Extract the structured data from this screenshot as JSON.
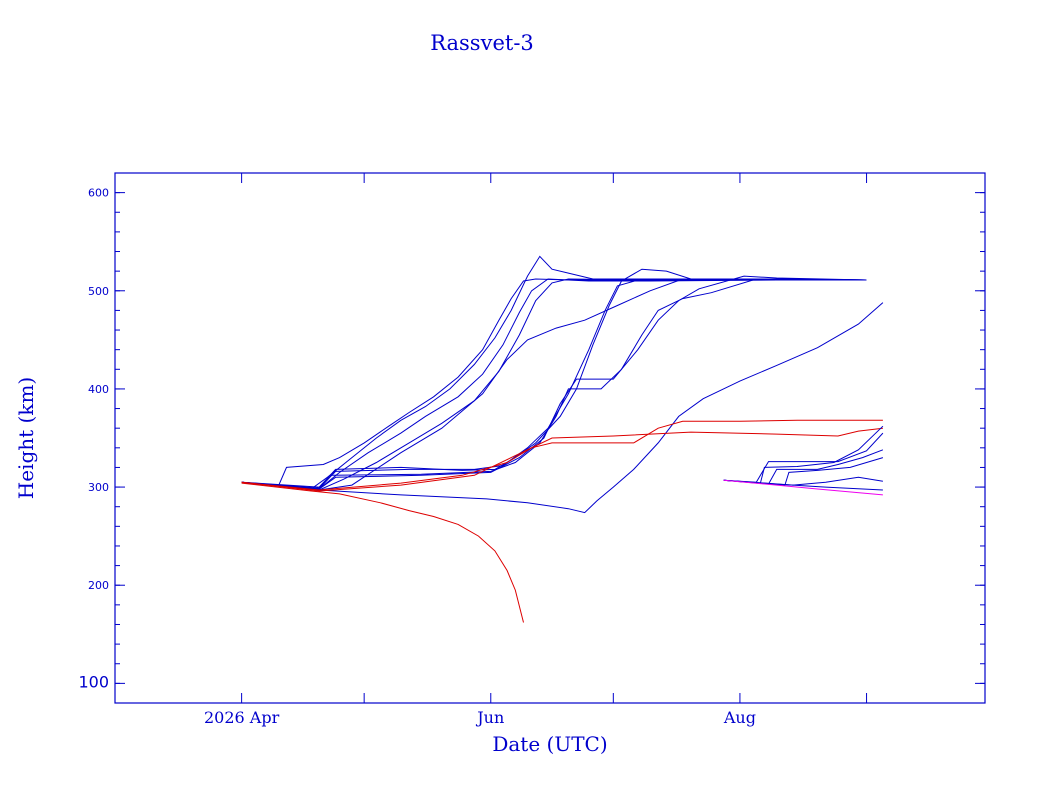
{
  "chart_data": {
    "type": "line",
    "title": "Rassvet-3",
    "xlabel": "Date (UTC)",
    "ylabel": "Height (km)",
    "x_axis": {
      "type": "date",
      "range": [
        "2026-03-01",
        "2026-09-30"
      ],
      "major_ticks": [
        {
          "date": "2026-04-01",
          "label": "2026 Apr"
        },
        {
          "date": "2026-05-01",
          "label": ""
        },
        {
          "date": "2026-06-01",
          "label": "Jun"
        },
        {
          "date": "2026-07-01",
          "label": ""
        },
        {
          "date": "2026-08-01",
          "label": "Aug"
        },
        {
          "date": "2026-09-01",
          "label": ""
        }
      ]
    },
    "y_axis": {
      "range": [
        80,
        620
      ],
      "major_ticks": [
        {
          "value": 100,
          "label": "100"
        },
        {
          "value": 200,
          "label": "200"
        },
        {
          "value": 300,
          "label": "300"
        },
        {
          "value": 400,
          "label": "400"
        },
        {
          "value": 500,
          "label": "500"
        },
        {
          "value": 600,
          "label": "600"
        }
      ],
      "minor_step": 20
    },
    "grid": false,
    "legend": "none",
    "colors": {
      "axis": "#0000cc",
      "blue": "#0000cc",
      "red": "#dd0000",
      "magenta": "#ee00ee"
    },
    "series": [
      {
        "color": "#0000cc",
        "points": [
          [
            "2026-04-01",
            305
          ],
          [
            "2026-04-10",
            301
          ],
          [
            "2026-04-12",
            320
          ],
          [
            "2026-04-21",
            323
          ],
          [
            "2026-04-25",
            330
          ],
          [
            "2026-05-01",
            345
          ],
          [
            "2026-05-07",
            362
          ],
          [
            "2026-05-12",
            376
          ],
          [
            "2026-05-18",
            392
          ],
          [
            "2026-05-24",
            412
          ],
          [
            "2026-05-30",
            440
          ],
          [
            "2026-06-03",
            470
          ],
          [
            "2026-06-06",
            492
          ],
          [
            "2026-06-09",
            510
          ],
          [
            "2026-06-12",
            512
          ],
          [
            "2026-06-20",
            511
          ],
          [
            "2026-07-15",
            511
          ],
          [
            "2026-08-10",
            511
          ],
          [
            "2026-09-01",
            511
          ]
        ]
      },
      {
        "color": "#0000cc",
        "points": [
          [
            "2026-04-01",
            305
          ],
          [
            "2026-04-18",
            298
          ],
          [
            "2026-04-22",
            310
          ],
          [
            "2026-04-28",
            330
          ],
          [
            "2026-05-04",
            350
          ],
          [
            "2026-05-10",
            368
          ],
          [
            "2026-05-16",
            382
          ],
          [
            "2026-05-22",
            400
          ],
          [
            "2026-05-28",
            425
          ],
          [
            "2026-06-02",
            452
          ],
          [
            "2026-06-06",
            480
          ],
          [
            "2026-06-10",
            515
          ],
          [
            "2026-06-13",
            535
          ],
          [
            "2026-06-16",
            522
          ],
          [
            "2026-06-20",
            518
          ],
          [
            "2026-06-26",
            512
          ],
          [
            "2026-07-05",
            512
          ],
          [
            "2026-08-01",
            512
          ],
          [
            "2026-09-01",
            511
          ]
        ]
      },
      {
        "color": "#0000cc",
        "points": [
          [
            "2026-04-01",
            305
          ],
          [
            "2026-04-20",
            298
          ],
          [
            "2026-04-25",
            315
          ],
          [
            "2026-05-02",
            335
          ],
          [
            "2026-05-10",
            355
          ],
          [
            "2026-05-16",
            372
          ],
          [
            "2026-05-24",
            392
          ],
          [
            "2026-05-30",
            415
          ],
          [
            "2026-06-04",
            445
          ],
          [
            "2026-06-08",
            478
          ],
          [
            "2026-06-11",
            500
          ],
          [
            "2026-06-15",
            512
          ],
          [
            "2026-06-25",
            510
          ],
          [
            "2026-07-10",
            510
          ],
          [
            "2026-08-10",
            511
          ],
          [
            "2026-09-01",
            511
          ]
        ]
      },
      {
        "color": "#0000cc",
        "points": [
          [
            "2026-04-01",
            305
          ],
          [
            "2026-04-20",
            297
          ],
          [
            "2026-04-26",
            308
          ],
          [
            "2026-05-04",
            325
          ],
          [
            "2026-05-12",
            345
          ],
          [
            "2026-05-20",
            365
          ],
          [
            "2026-05-28",
            388
          ],
          [
            "2026-06-03",
            418
          ],
          [
            "2026-06-08",
            455
          ],
          [
            "2026-06-12",
            490
          ],
          [
            "2026-06-16",
            508
          ],
          [
            "2026-06-20",
            512
          ],
          [
            "2026-07-10",
            511
          ],
          [
            "2026-09-01",
            511
          ]
        ]
      },
      {
        "color": "#0000cc",
        "points": [
          [
            "2026-04-01",
            305
          ],
          [
            "2026-04-20",
            297
          ],
          [
            "2026-04-28",
            302
          ],
          [
            "2026-05-10",
            335
          ],
          [
            "2026-05-20",
            360
          ],
          [
            "2026-05-30",
            395
          ],
          [
            "2026-06-05",
            430
          ],
          [
            "2026-06-10",
            450
          ],
          [
            "2026-06-17",
            462
          ],
          [
            "2026-06-24",
            470
          ],
          [
            "2026-07-02",
            485
          ],
          [
            "2026-07-10",
            500
          ],
          [
            "2026-07-18",
            512
          ],
          [
            "2026-08-05",
            512
          ],
          [
            "2026-09-01",
            511
          ]
        ]
      },
      {
        "color": "#0000cc",
        "points": [
          [
            "2026-04-01",
            305
          ],
          [
            "2026-04-20",
            300
          ],
          [
            "2026-04-24",
            318
          ],
          [
            "2026-05-10",
            320
          ],
          [
            "2026-05-25",
            317
          ],
          [
            "2026-06-02",
            318
          ],
          [
            "2026-06-07",
            330
          ],
          [
            "2026-06-12",
            345
          ],
          [
            "2026-06-18",
            372
          ],
          [
            "2026-06-22",
            400
          ],
          [
            "2026-06-26",
            445
          ],
          [
            "2026-06-30",
            485
          ],
          [
            "2026-07-03",
            510
          ],
          [
            "2026-07-08",
            522
          ],
          [
            "2026-07-14",
            520
          ],
          [
            "2026-07-20",
            512
          ],
          [
            "2026-08-10",
            512
          ],
          [
            "2026-09-01",
            511
          ]
        ]
      },
      {
        "color": "#0000cc",
        "points": [
          [
            "2026-04-01",
            305
          ],
          [
            "2026-04-20",
            299
          ],
          [
            "2026-04-24",
            316
          ],
          [
            "2026-05-12",
            318
          ],
          [
            "2026-05-28",
            318
          ],
          [
            "2026-06-04",
            322
          ],
          [
            "2026-06-10",
            340
          ],
          [
            "2026-06-15",
            360
          ],
          [
            "2026-06-20",
            395
          ],
          [
            "2026-06-25",
            440
          ],
          [
            "2026-06-29",
            480
          ],
          [
            "2026-07-02",
            505
          ],
          [
            "2026-07-08",
            512
          ],
          [
            "2026-08-10",
            512
          ],
          [
            "2026-09-01",
            511
          ]
        ]
      },
      {
        "color": "#0000cc",
        "points": [
          [
            "2026-04-01",
            305
          ],
          [
            "2026-04-20",
            298
          ],
          [
            "2026-04-23",
            312
          ],
          [
            "2026-05-15",
            313
          ],
          [
            "2026-06-01",
            316
          ],
          [
            "2026-06-07",
            325
          ],
          [
            "2026-06-13",
            345
          ],
          [
            "2026-06-17",
            372
          ],
          [
            "2026-06-20",
            400
          ],
          [
            "2026-06-28",
            400
          ],
          [
            "2026-07-03",
            420
          ],
          [
            "2026-07-08",
            455
          ],
          [
            "2026-07-12",
            480
          ],
          [
            "2026-07-18",
            492
          ],
          [
            "2026-07-25",
            498
          ],
          [
            "2026-08-05",
            512
          ],
          [
            "2026-09-01",
            511
          ]
        ]
      },
      {
        "color": "#0000cc",
        "points": [
          [
            "2026-04-01",
            305
          ],
          [
            "2026-04-20",
            298
          ],
          [
            "2026-04-24",
            310
          ],
          [
            "2026-05-15",
            312
          ],
          [
            "2026-06-01",
            315
          ],
          [
            "2026-06-08",
            330
          ],
          [
            "2026-06-14",
            350
          ],
          [
            "2026-06-18",
            385
          ],
          [
            "2026-06-22",
            410
          ],
          [
            "2026-07-01",
            410
          ],
          [
            "2026-07-07",
            440
          ],
          [
            "2026-07-12",
            470
          ],
          [
            "2026-07-17",
            490
          ],
          [
            "2026-07-22",
            502
          ],
          [
            "2026-08-02",
            515
          ],
          [
            "2026-08-10",
            513
          ],
          [
            "2026-09-01",
            511
          ]
        ]
      },
      {
        "color": "#0000cc",
        "points": [
          [
            "2026-04-01",
            305
          ],
          [
            "2026-04-20",
            297
          ],
          [
            "2026-05-10",
            292
          ],
          [
            "2026-05-31",
            288
          ],
          [
            "2026-06-10",
            284
          ],
          [
            "2026-06-20",
            278
          ],
          [
            "2026-06-24",
            274
          ],
          [
            "2026-06-27",
            286
          ],
          [
            "2026-07-01",
            300
          ],
          [
            "2026-07-06",
            318
          ],
          [
            "2026-07-12",
            345
          ],
          [
            "2026-07-17",
            372
          ],
          [
            "2026-07-23",
            390
          ],
          [
            "2026-08-01",
            408
          ],
          [
            "2026-08-10",
            424
          ],
          [
            "2026-08-20",
            442
          ],
          [
            "2026-08-30",
            466
          ],
          [
            "2026-09-05",
            488
          ]
        ]
      },
      {
        "color": "#dd0000",
        "points": [
          [
            "2026-04-01",
            304
          ],
          [
            "2026-04-18",
            296
          ],
          [
            "2026-04-25",
            293
          ],
          [
            "2026-05-05",
            284
          ],
          [
            "2026-05-12",
            276
          ],
          [
            "2026-05-18",
            270
          ],
          [
            "2026-05-24",
            262
          ],
          [
            "2026-05-29",
            250
          ],
          [
            "2026-06-02",
            235
          ],
          [
            "2026-06-05",
            215
          ],
          [
            "2026-06-07",
            195
          ],
          [
            "2026-06-09",
            162
          ]
        ]
      },
      {
        "color": "#dd0000",
        "points": [
          [
            "2026-04-01",
            305
          ],
          [
            "2026-04-20",
            297
          ],
          [
            "2026-05-10",
            304
          ],
          [
            "2026-05-25",
            312
          ],
          [
            "2026-06-05",
            325
          ],
          [
            "2026-06-11",
            340
          ],
          [
            "2026-06-16",
            345
          ],
          [
            "2026-07-06",
            345
          ],
          [
            "2026-07-12",
            360
          ],
          [
            "2026-07-18",
            367
          ],
          [
            "2026-08-01",
            367
          ],
          [
            "2026-08-15",
            368
          ],
          [
            "2026-09-05",
            368
          ]
        ]
      },
      {
        "color": "#dd0000",
        "points": [
          [
            "2026-04-01",
            305
          ],
          [
            "2026-04-20",
            296
          ],
          [
            "2026-05-10",
            302
          ],
          [
            "2026-05-28",
            312
          ],
          [
            "2026-06-06",
            330
          ],
          [
            "2026-06-16",
            350
          ],
          [
            "2026-07-01",
            352
          ],
          [
            "2026-07-20",
            356
          ],
          [
            "2026-08-10",
            354
          ],
          [
            "2026-08-25",
            352
          ],
          [
            "2026-08-30",
            357
          ],
          [
            "2026-09-05",
            360
          ]
        ]
      },
      {
        "color": "#0000cc",
        "points": [
          [
            "2026-07-28",
            307
          ],
          [
            "2026-08-10",
            303
          ],
          [
            "2026-08-22",
            300
          ],
          [
            "2026-09-05",
            297
          ]
        ]
      },
      {
        "color": "#0000cc",
        "points": [
          [
            "2026-07-28",
            307
          ],
          [
            "2026-08-08",
            303
          ],
          [
            "2026-08-10",
            318
          ],
          [
            "2026-08-20",
            318
          ],
          [
            "2026-08-25",
            323
          ],
          [
            "2026-08-31",
            330
          ],
          [
            "2026-09-05",
            338
          ]
        ]
      },
      {
        "color": "#0000cc",
        "points": [
          [
            "2026-07-28",
            307
          ],
          [
            "2026-08-06",
            304
          ],
          [
            "2026-08-07",
            320
          ],
          [
            "2026-08-15",
            321
          ],
          [
            "2026-08-24",
            325
          ],
          [
            "2026-08-30",
            338
          ],
          [
            "2026-09-05",
            362
          ]
        ]
      },
      {
        "color": "#0000cc",
        "points": [
          [
            "2026-07-28",
            307
          ],
          [
            "2026-08-12",
            302
          ],
          [
            "2026-08-13",
            315
          ],
          [
            "2026-08-20",
            317
          ],
          [
            "2026-08-28",
            320
          ],
          [
            "2026-09-05",
            330
          ]
        ]
      },
      {
        "color": "#0000cc",
        "points": [
          [
            "2026-07-28",
            307
          ],
          [
            "2026-08-05",
            305
          ],
          [
            "2026-08-08",
            326
          ],
          [
            "2026-08-25",
            326
          ],
          [
            "2026-09-01",
            337
          ],
          [
            "2026-09-05",
            355
          ]
        ]
      },
      {
        "color": "#0000cc",
        "points": [
          [
            "2026-07-28",
            307
          ],
          [
            "2026-08-14",
            302
          ],
          [
            "2026-08-22",
            305
          ],
          [
            "2026-08-30",
            310
          ],
          [
            "2026-09-05",
            306
          ]
        ]
      },
      {
        "color": "#ee00ee",
        "points": [
          [
            "2026-07-28",
            307
          ],
          [
            "2026-08-10",
            302
          ],
          [
            "2026-08-20",
            298
          ],
          [
            "2026-09-05",
            292
          ]
        ]
      }
    ]
  }
}
